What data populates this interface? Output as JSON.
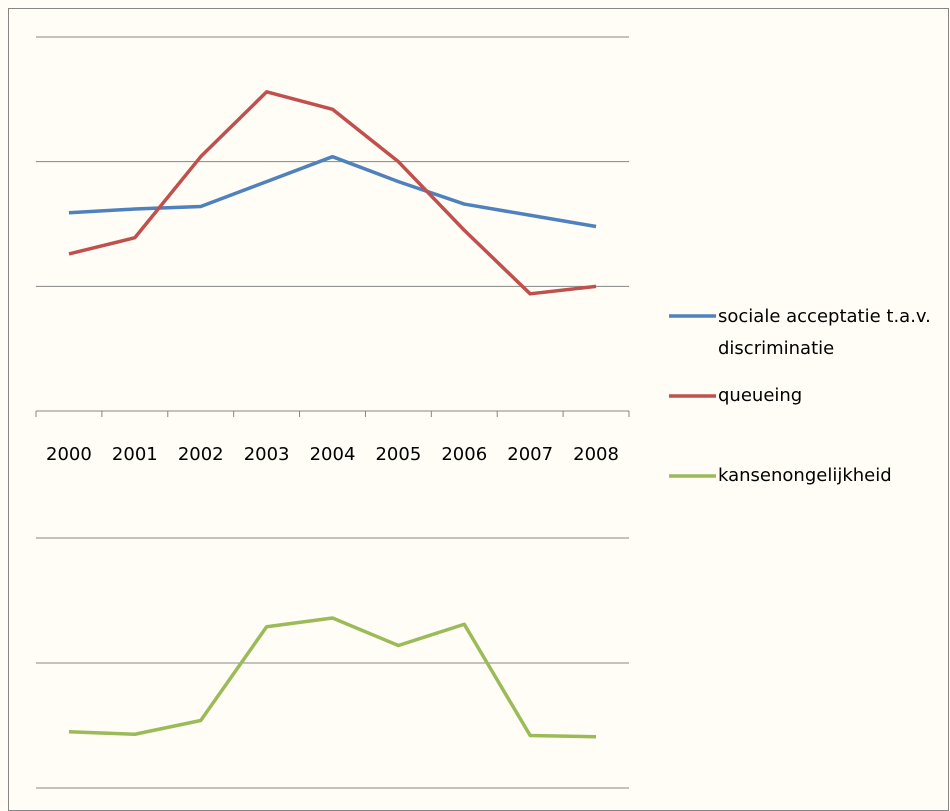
{
  "chart_data": [
    {
      "type": "line",
      "categories": [
        "2000",
        "2001",
        "2002",
        "2003",
        "2004",
        "2005",
        "2006",
        "2007",
        "2008"
      ],
      "series": [
        {
          "name": "sociale acceptatie t.a.v. discriminatie",
          "color": "#4f81bd",
          "values": [
            1.59,
            1.62,
            1.64,
            1.84,
            2.04,
            1.84,
            1.66,
            1.57,
            1.48
          ]
        },
        {
          "name": "queueing",
          "color": "#c0504d",
          "values": [
            1.26,
            1.39,
            2.04,
            2.56,
            2.42,
            2.0,
            1.45,
            0.94,
            1.0
          ]
        }
      ],
      "ylim": [
        0,
        3
      ],
      "yticks": [
        1,
        2,
        3
      ],
      "grid": true
    },
    {
      "type": "line",
      "series": [
        {
          "name": "kansenongelijkheid",
          "color": "#9bbb59",
          "values": [
            0.45,
            0.43,
            0.54,
            1.29,
            1.36,
            1.14,
            1.31,
            0.42,
            0.41
          ]
        }
      ],
      "ylim": [
        0,
        2
      ],
      "yticks": [
        0,
        1,
        2
      ],
      "grid": true
    }
  ]
}
